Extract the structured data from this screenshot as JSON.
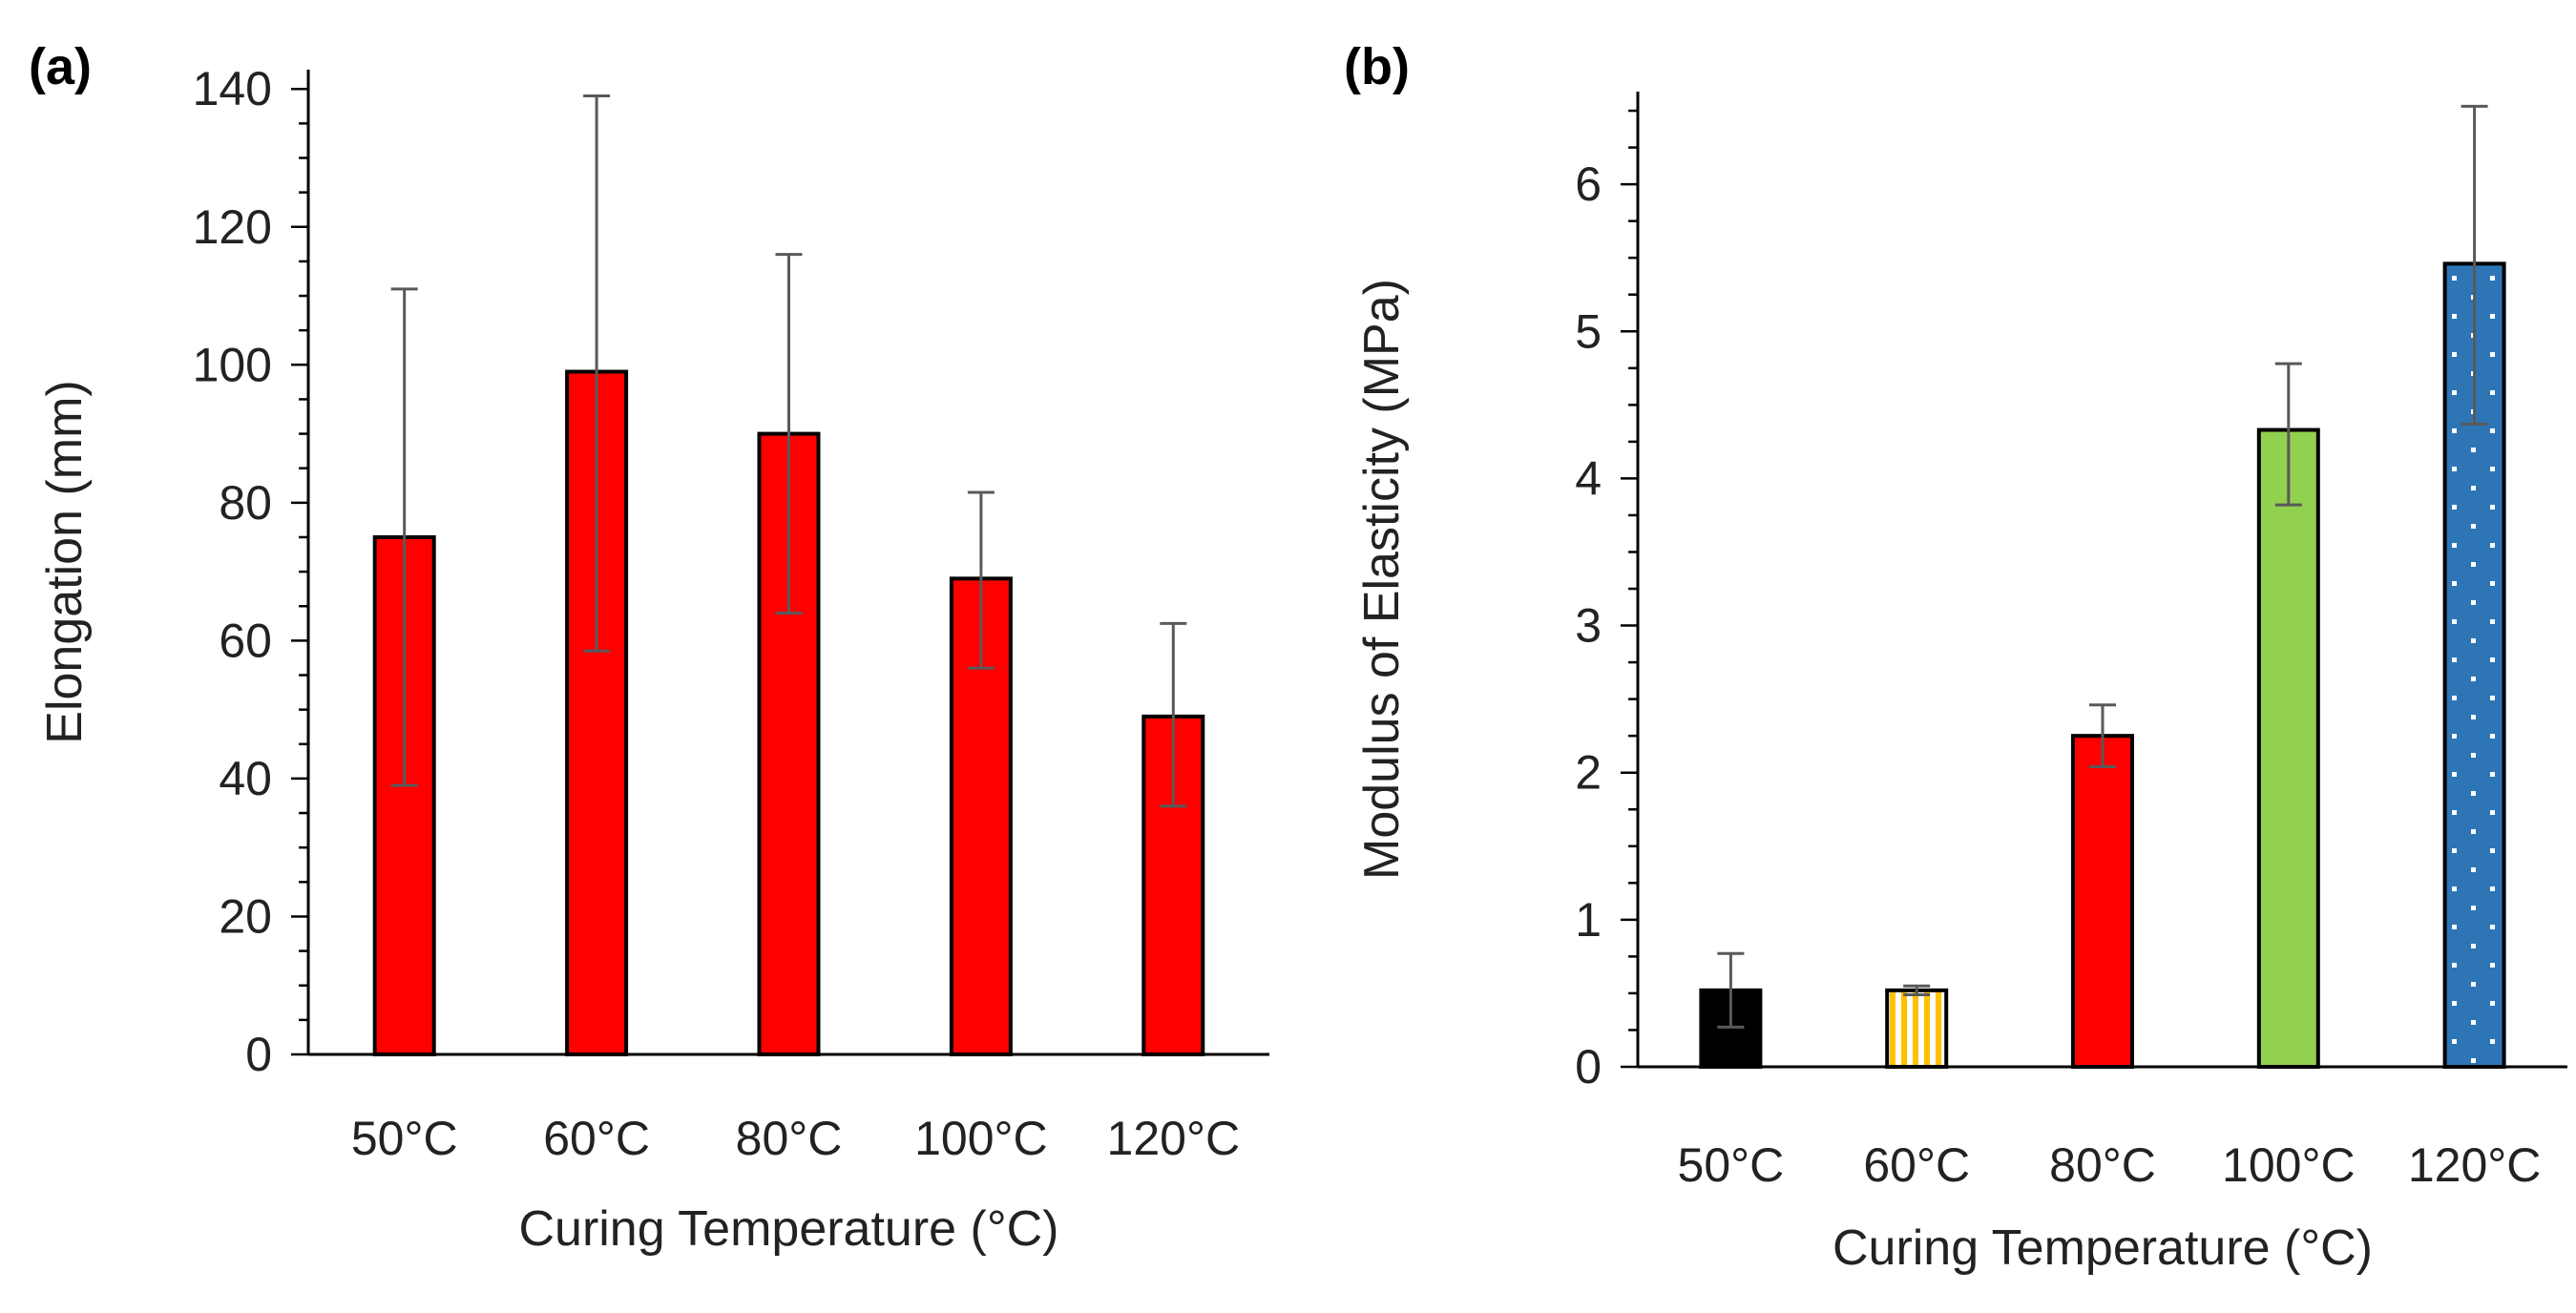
{
  "figure": {
    "panel_a_label": "(a)",
    "panel_b_label": "(b)"
  },
  "chart_data": [
    {
      "type": "bar",
      "panel": "(a)",
      "title": "",
      "xlabel": "Curing Temperature (°C)",
      "ylabel": "Elongation (mm)",
      "categories": [
        "50°C",
        "60°C",
        "80°C",
        "100°C",
        "120°C"
      ],
      "values": [
        75,
        99,
        90,
        69,
        49
      ],
      "error_lower": [
        39,
        58.5,
        64,
        56,
        36
      ],
      "error_upper": [
        111,
        139,
        116,
        81.5,
        62.5
      ],
      "ylim": [
        0,
        140
      ],
      "yticks": [
        0,
        20,
        40,
        60,
        80,
        100,
        120,
        140
      ],
      "bar_colors": [
        "#ff0000",
        "#ff0000",
        "#ff0000",
        "#ff0000",
        "#ff0000"
      ],
      "grid": false,
      "legend": "none"
    },
    {
      "type": "bar",
      "panel": "(b)",
      "title": "",
      "xlabel": "Curing Temperature (°C)",
      "ylabel": "Modulus of Elasticity (MPa)",
      "categories": [
        "50°C",
        "60°C",
        "80°C",
        "100°C",
        "120°C"
      ],
      "values": [
        0.52,
        0.52,
        2.25,
        4.33,
        5.46
      ],
      "error_lower": [
        0.27,
        0.49,
        2.04,
        3.82,
        4.37
      ],
      "error_upper": [
        0.77,
        0.55,
        2.46,
        4.78,
        6.53
      ],
      "ylim": [
        0,
        6.5
      ],
      "yticks": [
        0,
        1,
        2,
        3,
        4,
        5,
        6
      ],
      "bar_fills": [
        "solid",
        "vertical-stripes",
        "solid",
        "solid",
        "dots"
      ],
      "bar_colors": [
        "#000000",
        "#ffc000",
        "#ff0000",
        "#92d050",
        "#2e75b6"
      ],
      "grid": false,
      "legend": "none"
    }
  ]
}
